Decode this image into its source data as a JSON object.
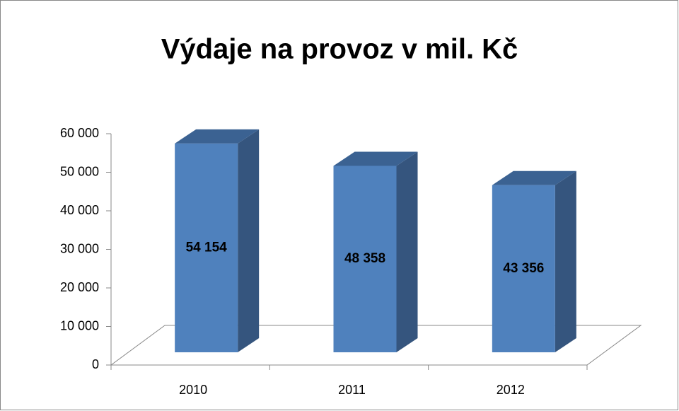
{
  "chart_data": {
    "type": "bar3d",
    "title": "Výdaje na provoz v mil. Kč",
    "categories": [
      "2010",
      "2011",
      "2012"
    ],
    "values": [
      54154,
      48358,
      43356
    ],
    "value_labels": [
      "54 154",
      "48 358",
      "43 356"
    ],
    "color": "#4f81bd",
    "ylim": [
      0,
      60000
    ],
    "yticks": [
      0,
      {
        "value": 10000,
        "label": "10 000"
      },
      {
        "value": 20000,
        "label": "20 000"
      },
      {
        "value": 30000,
        "label": "30 000"
      },
      {
        "value": 40000,
        "label": "40 000"
      },
      {
        "value": 50000,
        "label": "50 000"
      },
      {
        "value": 60000,
        "label": "60 000"
      }
    ]
  }
}
